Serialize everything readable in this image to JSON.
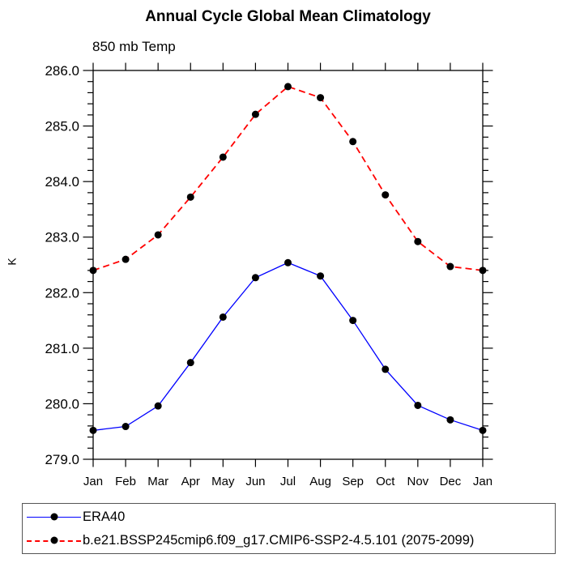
{
  "chart_data": {
    "type": "line",
    "title": "Annual Cycle Global Mean Climatology",
    "subtitle": "850 mb Temp",
    "ylabel": "K",
    "xlabel": "",
    "categories": [
      "Jan",
      "Feb",
      "Mar",
      "Apr",
      "May",
      "Jun",
      "Jul",
      "Aug",
      "Sep",
      "Oct",
      "Nov",
      "Dec",
      "Jan"
    ],
    "ylim": [
      279.0,
      286.0
    ],
    "ytick_major_step": 1.0,
    "ytick_minor_step": 0.2,
    "ytick_labels": [
      "279.0",
      "280.0",
      "281.0",
      "282.0",
      "283.0",
      "284.0",
      "285.0",
      "286.0"
    ],
    "grid": false,
    "legend_position": "bottom-left",
    "series": [
      {
        "name": "ERA40",
        "color": "#0000ff",
        "line_style": "solid",
        "marker": "filled-circle",
        "marker_color": "#000000",
        "values": [
          279.52,
          279.59,
          279.96,
          280.74,
          281.56,
          282.27,
          282.54,
          282.3,
          281.5,
          280.62,
          279.97,
          279.71,
          279.52
        ]
      },
      {
        "name": "b.e21.BSSP245cmip6.f09_g17.CMIP6-SSP2-4.5.101 (2075-2099)",
        "color": "#ff0000",
        "line_style": "dashed",
        "marker": "filled-circle",
        "marker_color": "#000000",
        "values": [
          282.4,
          282.6,
          283.04,
          283.72,
          284.44,
          285.21,
          285.71,
          285.51,
          284.72,
          283.76,
          282.92,
          282.47,
          282.4
        ]
      }
    ]
  },
  "colors": {
    "background": "#ffffff",
    "axis": "#000000",
    "text": "#000000",
    "legend_border": "#555555",
    "series_blue": "#0000ff",
    "series_red": "#ff0000",
    "marker": "#000000"
  }
}
